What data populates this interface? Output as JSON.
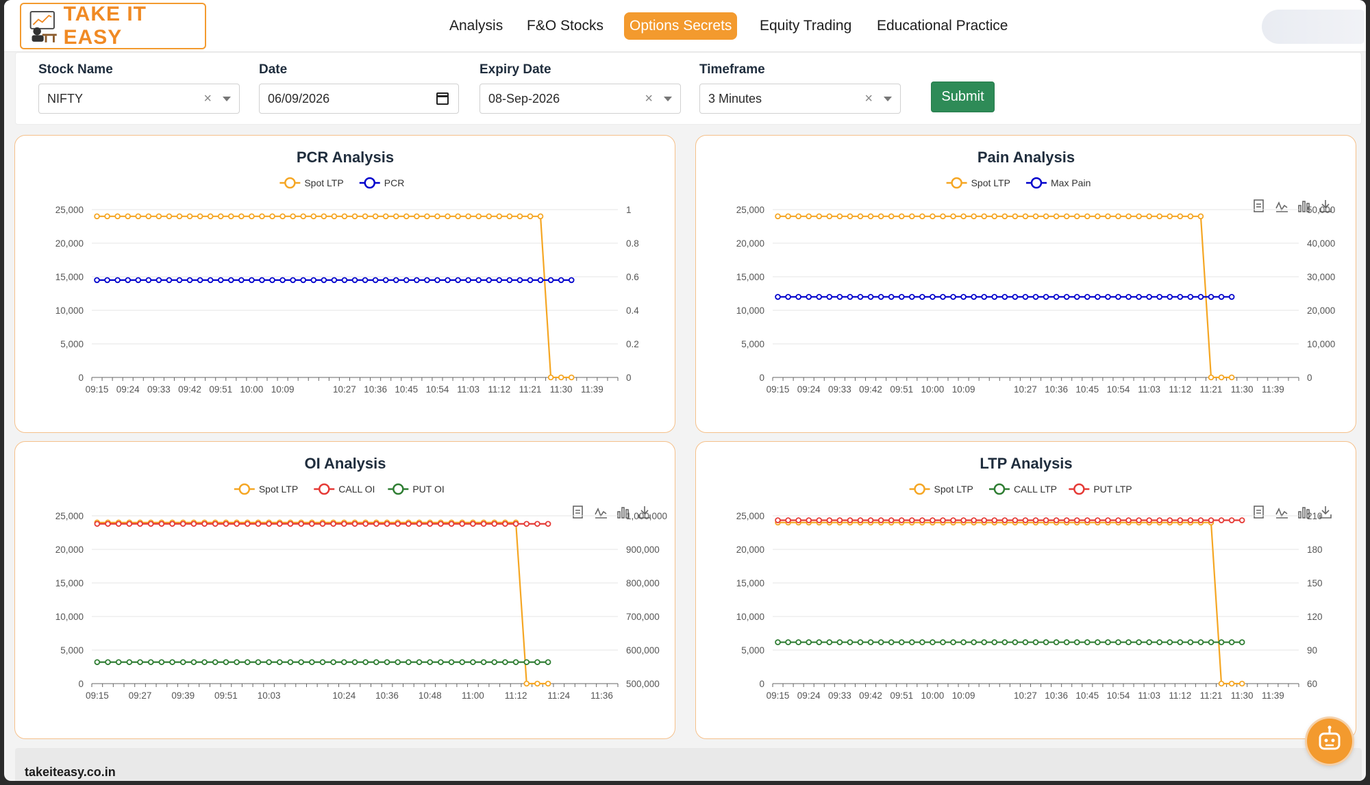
{
  "brand": {
    "name": "TAKE IT EASY"
  },
  "nav": {
    "items": [
      {
        "label": "Analysis",
        "active": false
      },
      {
        "label": "F&O Stocks",
        "active": false
      },
      {
        "label": "Options Secrets",
        "active": true
      },
      {
        "label": "Equity Trading",
        "active": false
      },
      {
        "label": "Educational Practice",
        "active": false
      }
    ]
  },
  "form": {
    "stock": {
      "label": "Stock Name",
      "value": "NIFTY"
    },
    "date": {
      "label": "Date",
      "value": "06/09/2026"
    },
    "expiry": {
      "label": "Expiry Date",
      "value": "08-Sep-2026"
    },
    "timeframe": {
      "label": "Timeframe",
      "value": "3 Minutes"
    },
    "submit_label": "Submit"
  },
  "colors": {
    "accent": "#f39a2e",
    "spot": "#f5a623",
    "blue": "#0000cc",
    "red": "#e53935",
    "green": "#2e7d32",
    "submit": "#2e8b57"
  },
  "chart_data": [
    {
      "type": "line",
      "title": "PCR Analysis",
      "toolbox": false,
      "x": [
        "09:15",
        "09:18",
        "09:21",
        "09:24",
        "09:27",
        "09:30",
        "09:33",
        "09:36",
        "09:39",
        "09:42",
        "09:45",
        "09:48",
        "09:51",
        "09:54",
        "09:57",
        "10:00",
        "10:03",
        "10:06",
        "10:09",
        "10:12",
        "10:15",
        "10:18",
        "10:21",
        "10:24",
        "10:27",
        "10:30",
        "10:33",
        "10:36",
        "10:39",
        "10:42",
        "10:45",
        "10:48",
        "10:51",
        "10:54",
        "10:57",
        "11:00",
        "11:03",
        "11:06",
        "11:09",
        "11:12",
        "11:15",
        "11:18",
        "11:21",
        "11:24",
        "11:27",
        "11:30",
        "11:33",
        "11:36",
        "11:39",
        "11:42",
        "11:45"
      ],
      "x_ticks": [
        "09:15",
        "09:24",
        "09:33",
        "09:42",
        "09:51",
        "10:00",
        "10:09",
        "10:27",
        "10:36",
        "10:45",
        "10:54",
        "11:03",
        "11:12",
        "11:21",
        "11:30",
        "11:39"
      ],
      "y_left": {
        "min": 0,
        "max": 25000,
        "ticks": [
          "0",
          "5,000",
          "10,000",
          "15,000",
          "20,000",
          "25,000"
        ]
      },
      "y_right": {
        "min": 0,
        "max": 1,
        "ticks": [
          "0",
          "0.2",
          "0.4",
          "0.6",
          "0.8",
          "1"
        ]
      },
      "series": [
        {
          "name": "Spot LTP",
          "color": "#f5a623",
          "axis": "left",
          "count": 44,
          "value": 24000,
          "zero_tail": 3
        },
        {
          "name": "PCR",
          "color": "#0000cc",
          "axis": "right",
          "count": 47,
          "value": 0.58
        }
      ]
    },
    {
      "type": "line",
      "title": "Pain Analysis",
      "toolbox": true,
      "x": [
        "09:15",
        "09:18",
        "09:21",
        "09:24",
        "09:27",
        "09:30",
        "09:33",
        "09:36",
        "09:39",
        "09:42",
        "09:45",
        "09:48",
        "09:51",
        "09:54",
        "09:57",
        "10:00",
        "10:03",
        "10:06",
        "10:09",
        "10:12",
        "10:15",
        "10:18",
        "10:21",
        "10:24",
        "10:27",
        "10:30",
        "10:33",
        "10:36",
        "10:39",
        "10:42",
        "10:45",
        "10:48",
        "10:51",
        "10:54",
        "10:57",
        "11:00",
        "11:03",
        "11:06",
        "11:09",
        "11:12",
        "11:15",
        "11:18",
        "11:21",
        "11:24",
        "11:27",
        "11:30",
        "11:33",
        "11:36",
        "11:39",
        "11:42",
        "11:45"
      ],
      "x_ticks": [
        "09:15",
        "09:24",
        "09:33",
        "09:42",
        "09:51",
        "10:00",
        "10:09",
        "10:27",
        "10:36",
        "10:45",
        "10:54",
        "11:03",
        "11:12",
        "11:21",
        "11:30",
        "11:39"
      ],
      "y_left": {
        "min": 0,
        "max": 25000,
        "ticks": [
          "0",
          "5,000",
          "10,000",
          "15,000",
          "20,000",
          "25,000"
        ]
      },
      "y_right": {
        "min": 0,
        "max": 50000,
        "ticks": [
          "0",
          "10,000",
          "20,000",
          "30,000",
          "40,000",
          "50,000"
        ]
      },
      "series": [
        {
          "name": "Spot LTP",
          "color": "#f5a623",
          "axis": "left",
          "count": 42,
          "value": 24000,
          "zero_tail": 3
        },
        {
          "name": "Max Pain",
          "color": "#0000cc",
          "axis": "right",
          "count": 45,
          "value": 24000
        }
      ]
    },
    {
      "type": "line",
      "title": "OI Analysis",
      "toolbox": true,
      "x": [
        "09:15",
        "09:18",
        "09:21",
        "09:24",
        "09:27",
        "09:30",
        "09:33",
        "09:36",
        "09:39",
        "09:42",
        "09:45",
        "09:48",
        "09:51",
        "09:54",
        "09:57",
        "10:00",
        "10:03",
        "10:06",
        "10:09",
        "10:12",
        "10:15",
        "10:18",
        "10:21",
        "10:24",
        "10:27",
        "10:30",
        "10:33",
        "10:36",
        "10:39",
        "10:42",
        "10:45",
        "10:48",
        "10:51",
        "10:54",
        "10:57",
        "11:00",
        "11:03",
        "11:06",
        "11:09",
        "11:12",
        "11:15",
        "11:18",
        "11:21",
        "11:24",
        "11:27",
        "11:30",
        "11:33",
        "11:36",
        "11:39"
      ],
      "x_ticks": [
        "09:15",
        "09:27",
        "09:39",
        "09:51",
        "10:03",
        "10:24",
        "10:36",
        "10:48",
        "11:00",
        "11:12",
        "11:24",
        "11:36"
      ],
      "y_left": {
        "min": 0,
        "max": 25000,
        "ticks": [
          "0",
          "5,000",
          "10,000",
          "15,000",
          "20,000",
          "25,000"
        ]
      },
      "y_right": {
        "min": 500000,
        "max": 1000000,
        "ticks": [
          "500,000",
          "600,000",
          "700,000",
          "800,000",
          "900,000",
          "1,000,000"
        ]
      },
      "series": [
        {
          "name": "Spot LTP",
          "color": "#f5a623",
          "axis": "left",
          "count": 40,
          "value": 24000,
          "zero_tail": 3
        },
        {
          "name": "CALL OI",
          "color": "#e53935",
          "axis": "right",
          "count": 43,
          "value": 976000
        },
        {
          "name": "PUT OI",
          "color": "#2e7d32",
          "axis": "right",
          "count": 43,
          "value": 564000
        }
      ]
    },
    {
      "type": "line",
      "title": "LTP Analysis",
      "toolbox": true,
      "x": [
        "09:15",
        "09:18",
        "09:21",
        "09:24",
        "09:27",
        "09:30",
        "09:33",
        "09:36",
        "09:39",
        "09:42",
        "09:45",
        "09:48",
        "09:51",
        "09:54",
        "09:57",
        "10:00",
        "10:03",
        "10:06",
        "10:09",
        "10:12",
        "10:15",
        "10:18",
        "10:21",
        "10:24",
        "10:27",
        "10:30",
        "10:33",
        "10:36",
        "10:39",
        "10:42",
        "10:45",
        "10:48",
        "10:51",
        "10:54",
        "10:57",
        "11:00",
        "11:03",
        "11:06",
        "11:09",
        "11:12",
        "11:15",
        "11:18",
        "11:21",
        "11:24",
        "11:27",
        "11:30",
        "11:33",
        "11:36",
        "11:39",
        "11:42",
        "11:45"
      ],
      "x_ticks": [
        "09:15",
        "09:24",
        "09:33",
        "09:42",
        "09:51",
        "10:00",
        "10:09",
        "10:27",
        "10:36",
        "10:45",
        "10:54",
        "11:03",
        "11:12",
        "11:21",
        "11:30",
        "11:39"
      ],
      "y_left": {
        "min": 0,
        "max": 25000,
        "ticks": [
          "0",
          "5,000",
          "10,000",
          "15,000",
          "20,000",
          "25,000"
        ]
      },
      "y_right": {
        "min": 60,
        "max": 210,
        "ticks": [
          "60",
          "90",
          "120",
          "150",
          "180",
          "210"
        ]
      },
      "series": [
        {
          "name": "Spot LTP",
          "color": "#f5a623",
          "axis": "left",
          "count": 43,
          "value": 24000,
          "zero_tail": 3
        },
        {
          "name": "CALL LTP",
          "color": "#2e7d32",
          "axis": "right",
          "count": 46,
          "value": 97
        },
        {
          "name": "PUT LTP",
          "color": "#e53935",
          "axis": "right",
          "count": 46,
          "value": 206
        }
      ]
    }
  ],
  "footer": {
    "domain": "takeiteasy.co.in"
  },
  "chatbot": {
    "icon": "robot-icon"
  }
}
